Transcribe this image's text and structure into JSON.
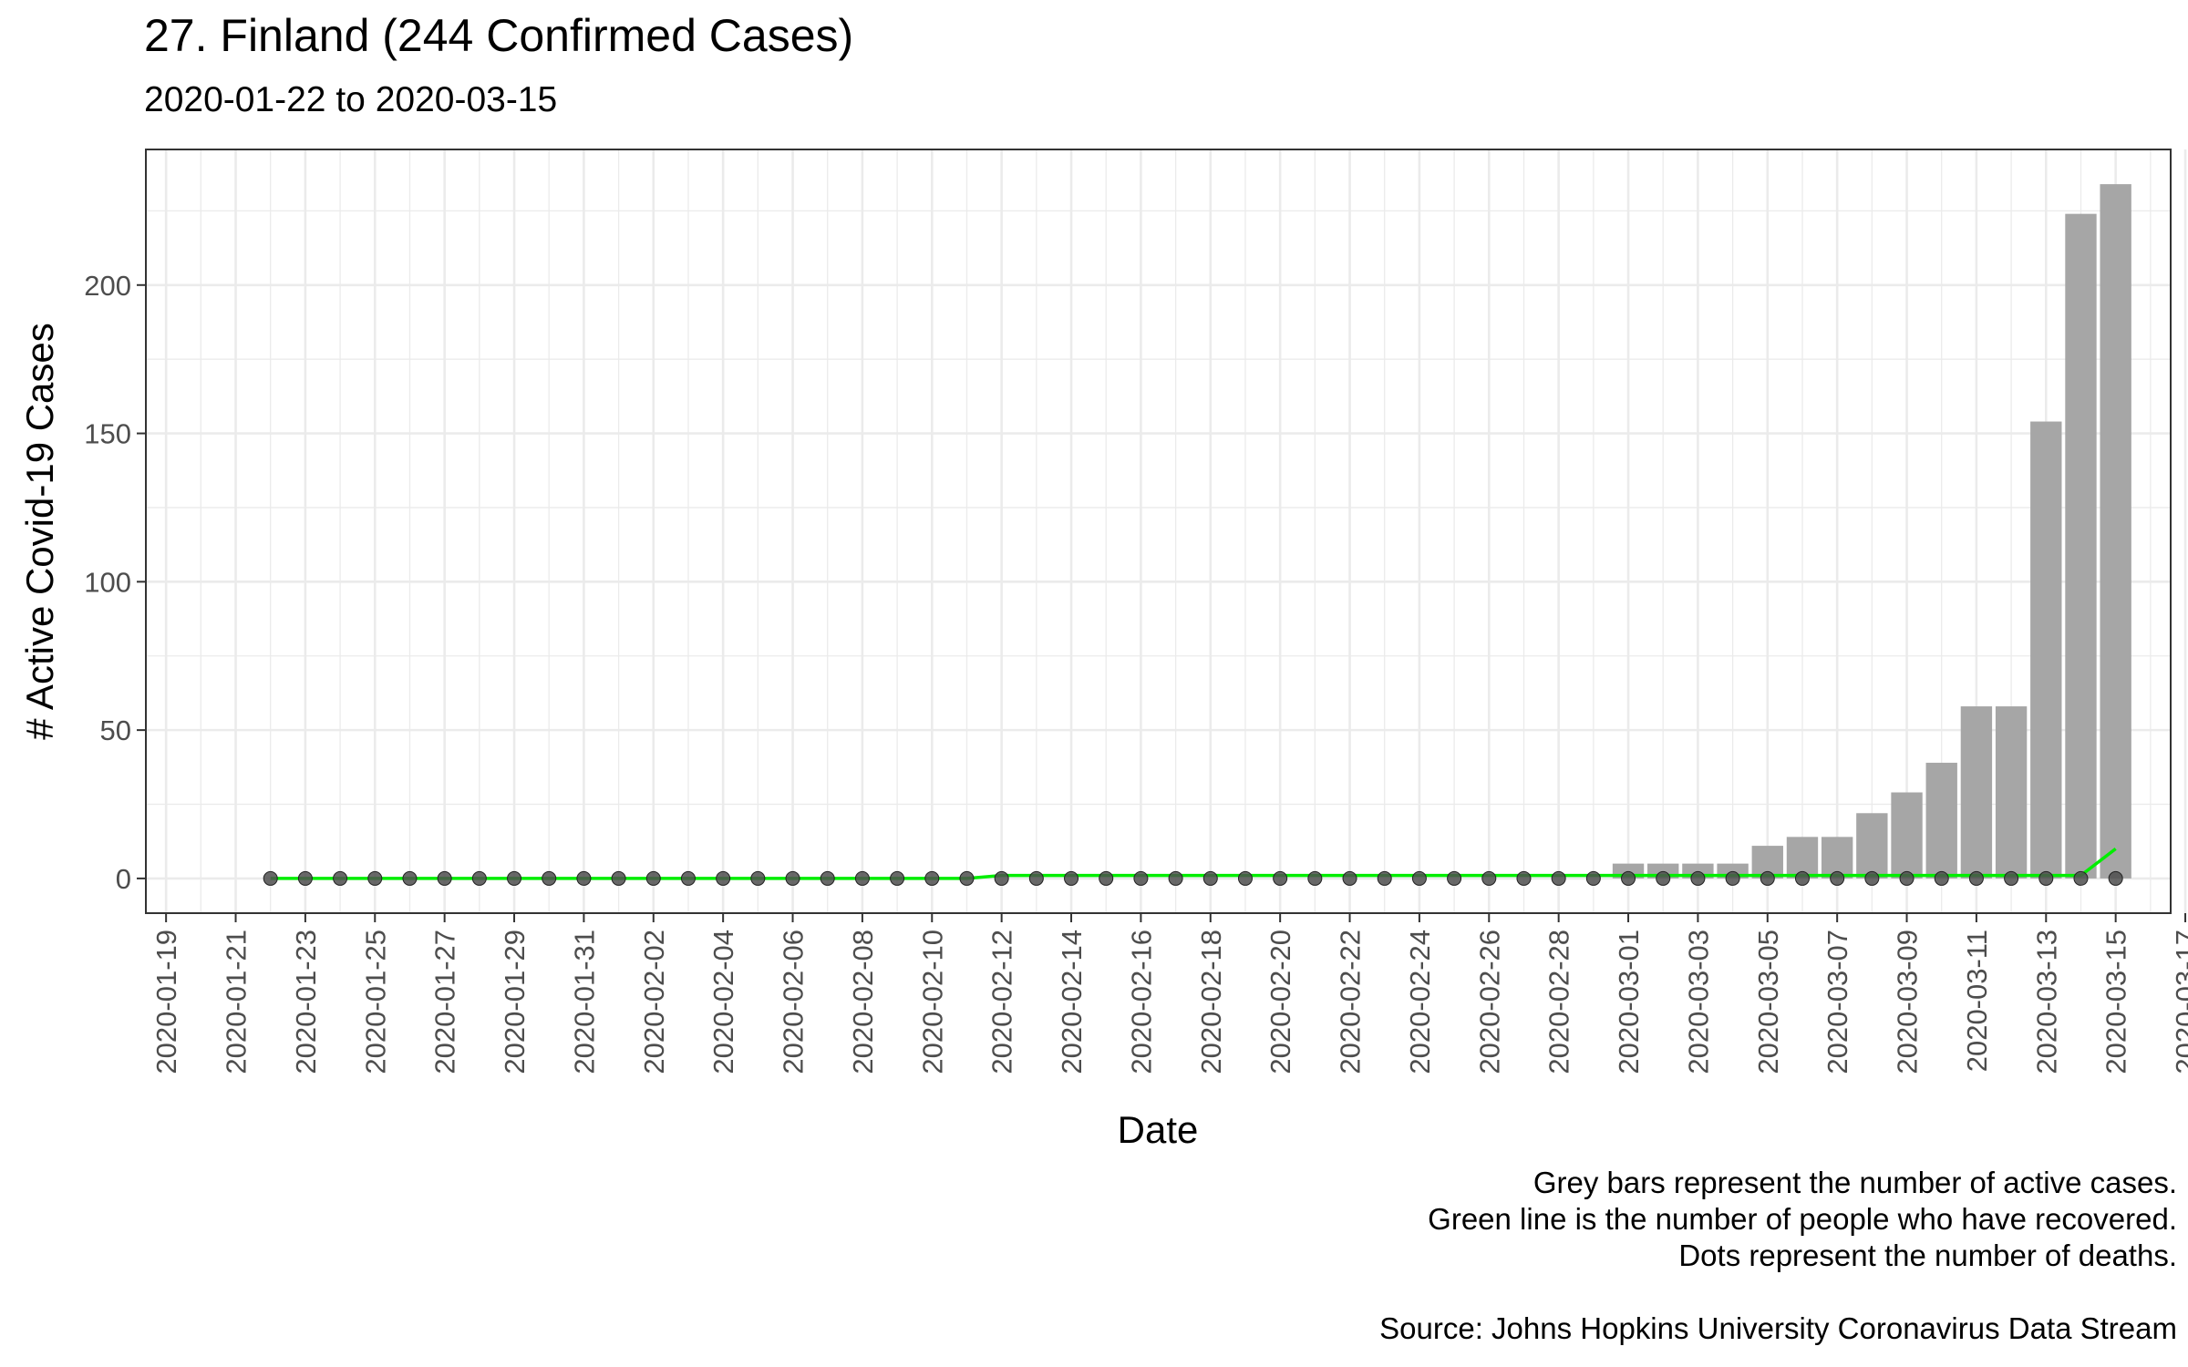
{
  "header": {
    "title": "27. Finland (244 Confirmed Cases)",
    "subtitle": "2020-01-22 to 2020-03-15"
  },
  "caption": {
    "line1": "Grey bars represent the number of active cases.",
    "line2": "Green line is the number of people who have recovered.",
    "line3": "Dots represent the number of deaths.",
    "line4": "",
    "line5": "Source: Johns Hopkins University Coronavirus Data Stream"
  },
  "colors": {
    "bar": "#a6a6a6",
    "line": "#00ee00",
    "dot": "#4d4d4d",
    "grid": "#ebebeb",
    "panel_border": "#333333"
  },
  "chart_data": {
    "type": "bar",
    "title": "27. Finland (244 Confirmed Cases)",
    "subtitle": "2020-01-22 to 2020-03-15",
    "xlabel": "Date",
    "ylabel": "# Active Covid-19 Cases",
    "grid": true,
    "xlim": [
      "2020-01-19",
      "2020-03-17"
    ],
    "ylim": [
      0,
      240
    ],
    "x_ticks": [
      "2020-01-19",
      "2020-01-21",
      "2020-01-23",
      "2020-01-25",
      "2020-01-27",
      "2020-01-29",
      "2020-01-31",
      "2020-02-02",
      "2020-02-04",
      "2020-02-06",
      "2020-02-08",
      "2020-02-10",
      "2020-02-12",
      "2020-02-14",
      "2020-02-16",
      "2020-02-18",
      "2020-02-20",
      "2020-02-22",
      "2020-02-24",
      "2020-02-26",
      "2020-02-28",
      "2020-03-01",
      "2020-03-03",
      "2020-03-05",
      "2020-03-07",
      "2020-03-09",
      "2020-03-11",
      "2020-03-13",
      "2020-03-15",
      "2020-03-17"
    ],
    "y_ticks": [
      0,
      50,
      100,
      150,
      200
    ],
    "dates": [
      "2020-01-22",
      "2020-01-23",
      "2020-01-24",
      "2020-01-25",
      "2020-01-26",
      "2020-01-27",
      "2020-01-28",
      "2020-01-29",
      "2020-01-30",
      "2020-01-31",
      "2020-02-01",
      "2020-02-02",
      "2020-02-03",
      "2020-02-04",
      "2020-02-05",
      "2020-02-06",
      "2020-02-07",
      "2020-02-08",
      "2020-02-09",
      "2020-02-10",
      "2020-02-11",
      "2020-02-12",
      "2020-02-13",
      "2020-02-14",
      "2020-02-15",
      "2020-02-16",
      "2020-02-17",
      "2020-02-18",
      "2020-02-19",
      "2020-02-20",
      "2020-02-21",
      "2020-02-22",
      "2020-02-23",
      "2020-02-24",
      "2020-02-25",
      "2020-02-26",
      "2020-02-27",
      "2020-02-28",
      "2020-02-29",
      "2020-03-01",
      "2020-03-02",
      "2020-03-03",
      "2020-03-04",
      "2020-03-05",
      "2020-03-06",
      "2020-03-07",
      "2020-03-08",
      "2020-03-09",
      "2020-03-10",
      "2020-03-11",
      "2020-03-12",
      "2020-03-13",
      "2020-03-14",
      "2020-03-15"
    ],
    "series": [
      {
        "type": "bar",
        "values": [
          0,
          0,
          0,
          0,
          0,
          0,
          0,
          0,
          0,
          0,
          0,
          0,
          0,
          0,
          0,
          0,
          0,
          0,
          0,
          0,
          0,
          0,
          0,
          0,
          0,
          0,
          0,
          0,
          0,
          0,
          0,
          0,
          0,
          0,
          0,
          0,
          0,
          0,
          0,
          5,
          5,
          5,
          5,
          11,
          14,
          14,
          22,
          29,
          39,
          58,
          58,
          154,
          224,
          234
        ]
      },
      {
        "type": "line",
        "values": [
          0,
          0,
          0,
          0,
          0,
          0,
          0,
          0,
          0,
          0,
          0,
          0,
          0,
          0,
          0,
          0,
          0,
          0,
          0,
          0,
          0,
          1,
          1,
          1,
          1,
          1,
          1,
          1,
          1,
          1,
          1,
          1,
          1,
          1,
          1,
          1,
          1,
          1,
          1,
          1,
          1,
          1,
          1,
          1,
          1,
          1,
          1,
          1,
          1,
          1,
          1,
          1,
          1,
          10
        ]
      },
      {
        "type": "scatter",
        "values": [
          0,
          0,
          0,
          0,
          0,
          0,
          0,
          0,
          0,
          0,
          0,
          0,
          0,
          0,
          0,
          0,
          0,
          0,
          0,
          0,
          0,
          0,
          0,
          0,
          0,
          0,
          0,
          0,
          0,
          0,
          0,
          0,
          0,
          0,
          0,
          0,
          0,
          0,
          0,
          0,
          0,
          0,
          0,
          0,
          0,
          0,
          0,
          0,
          0,
          0,
          0,
          0,
          0,
          0
        ]
      }
    ]
  }
}
